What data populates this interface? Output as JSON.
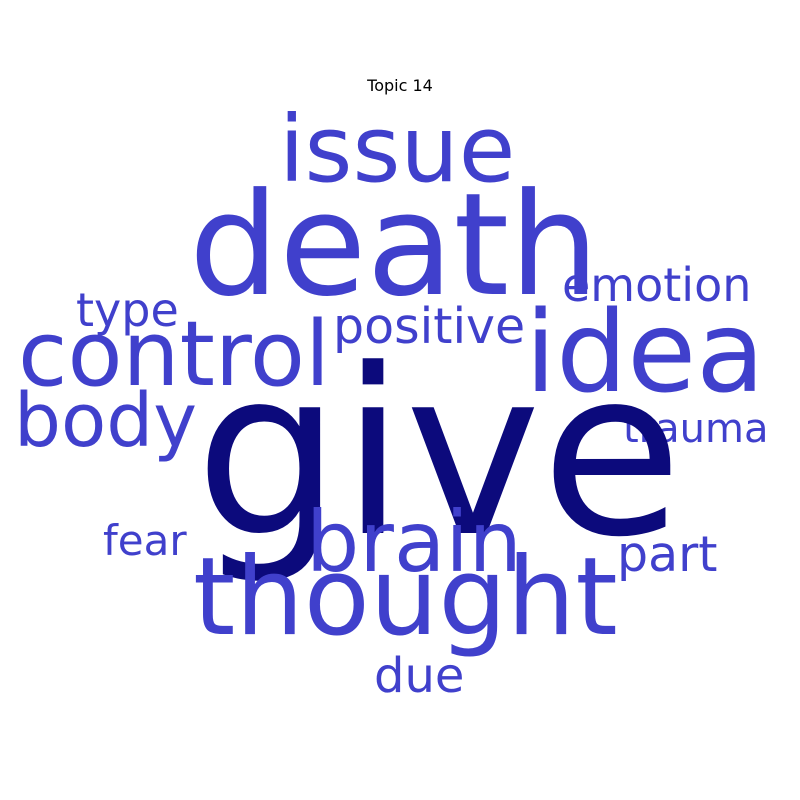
{
  "title": "Topic 14",
  "colors": {
    "primary": "#4040cc",
    "emphasis": "#0c0a7c",
    "background": "#ffffff"
  },
  "words": {
    "issue": "issue",
    "death": "death",
    "emotion": "emotion",
    "type": "type",
    "positive": "positive",
    "control": "control",
    "idea": "idea",
    "body": "body",
    "trauma": "trauma",
    "give": "give",
    "fear": "fear",
    "brain": "brain",
    "part": "part",
    "thought": "thought",
    "due": "due"
  }
}
